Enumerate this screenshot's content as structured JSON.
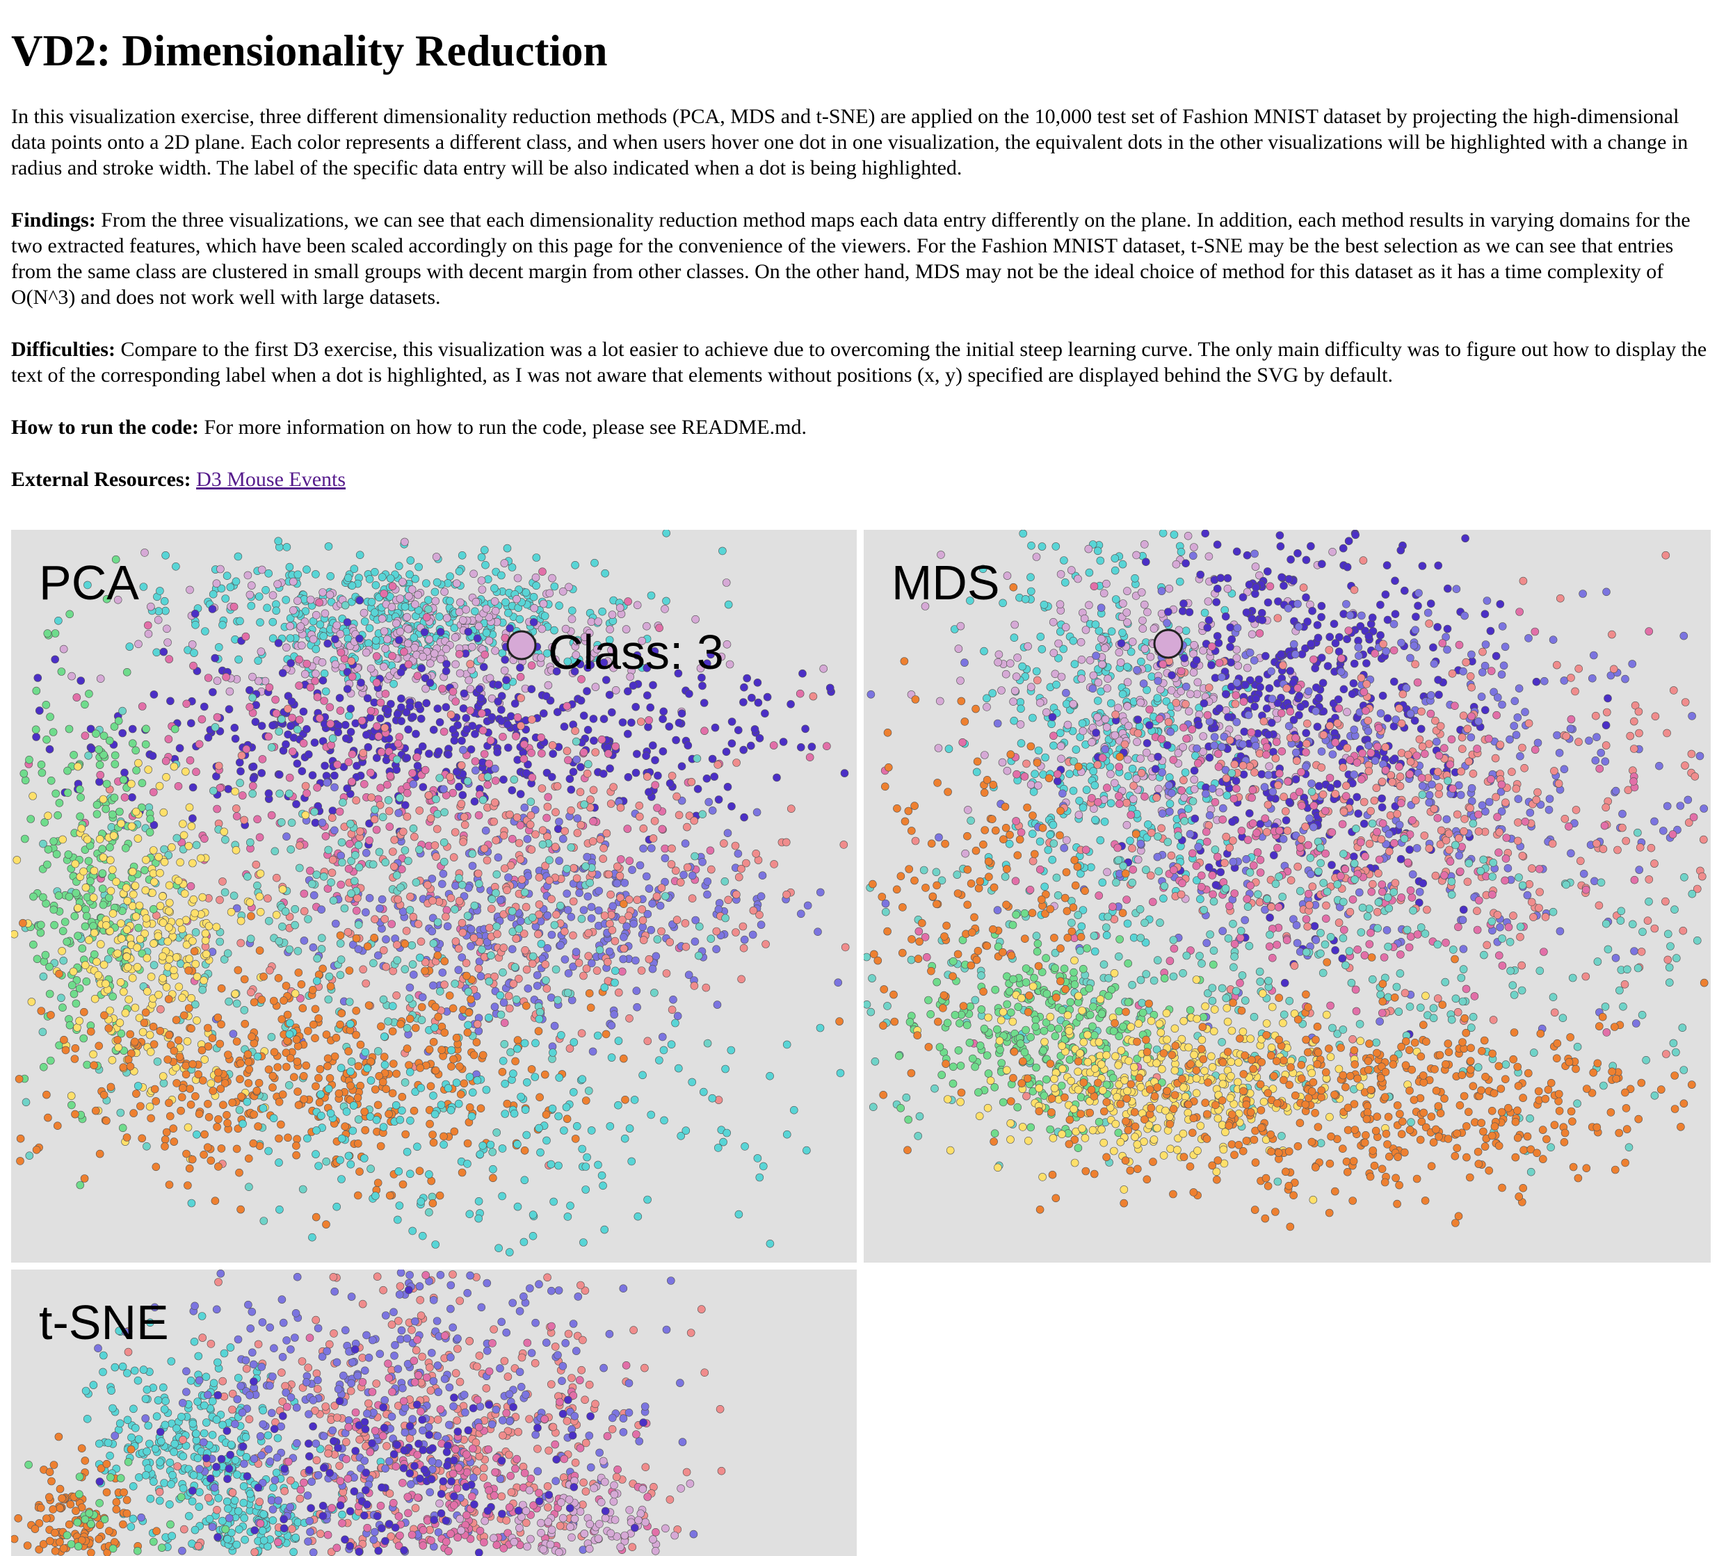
{
  "page": {
    "title": "VD2: Dimensionality Reduction",
    "intro": "In this visualization exercise, three different dimensionality reduction methods (PCA, MDS and t-SNE) are applied on the 10,000 test set of Fashion MNIST dataset by projecting the high-dimensional data points onto a 2D plane. Each color represents a different class, and when users hover one dot in one visualization, the equivalent dots in the other visualizations will be highlighted with a change in radius and stroke width. The label of the specific data entry will be also indicated when a dot is being highlighted.",
    "findings_label": "Findings:",
    "findings": " From the three visualizations, we can see that each dimensionality reduction method maps each data entry differently on the plane. In addition, each method results in varying domains for the two extracted features, which have been scaled accordingly on this page for the convenience of the viewers. For the Fashion MNIST dataset, t-SNE may be the best selection as we can see that entries from the same class are clustered in small groups with decent margin from other classes. On the other hand, MDS may not be the ideal choice of method for this dataset as it has a time complexity of O(N^3) and does not work well with large datasets.",
    "difficulties_label": "Difficulties:",
    "difficulties": " Compare to the first D3 exercise, this visualization was a lot easier to achieve due to overcoming the initial steep learning curve. The only main difficulty was to figure out how to display the text of the corresponding label when a dot is highlighted, as I was not aware that elements without positions (x, y) specified are displayed behind the SVG by default.",
    "run_label": "How to run the code:",
    "run": " For more information on how to run the code, please see README.md.",
    "resources_label": "External Resources:",
    "resources_link": "D3 Mouse Events"
  },
  "plots": [
    {
      "title": "PCA",
      "hover_label": "Class: 3"
    },
    {
      "title": "MDS"
    },
    {
      "title": "t-SNE"
    }
  ],
  "class_colors": {
    "0": "#f08c8c",
    "1": "#7b74e0",
    "2": "#6fd3c8",
    "3": "#d6a9d6",
    "4": "#ee8030",
    "5": "#6fdc8c",
    "6": "#e26fa8",
    "7": "#4b2fc6",
    "8": "#ffe06a",
    "9": "#58d5d6"
  }
}
